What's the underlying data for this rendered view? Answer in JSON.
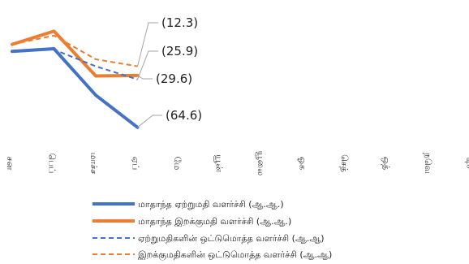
{
  "chart_data": {
    "type": "line",
    "title": "",
    "xlabel": "",
    "ylabel": "",
    "categories": [
      "சன",
      "பெப்",
      "மாச்ச",
      "ஏப்",
      "மே",
      "யூன்",
      "யூலை",
      "ஓக",
      "செத்",
      "ஒத்",
      "நவெ",
      "டிச"
    ],
    "series": [
      {
        "name": "மாதாந்த ஏற்றுமதி வளர்ச்சி (ஆ.ஆ.)",
        "color": "#4472C4",
        "dash": false,
        "values": [
          22,
          25,
          -28,
          -64.6,
          null,
          null,
          null,
          null,
          null,
          null,
          null,
          null
        ]
      },
      {
        "name": "மாதாந்த இறக்குமதி வளர்ச்சி (ஆ.ஆ.)",
        "color": "#ED7D31",
        "dash": false,
        "values": [
          30,
          45,
          -6,
          -5.5,
          null,
          null,
          null,
          null,
          null,
          null,
          null,
          null
        ]
      },
      {
        "name": "ஏற்றுமதிகளின் ஒட்டுமொத்த வளர்ச்சி (ஆ.ஆ)",
        "color": "#4472C4",
        "dash": true,
        "values": [
          22,
          24,
          5,
          -10,
          null,
          null,
          null,
          null,
          null,
          null,
          null,
          null
        ]
      },
      {
        "name": "இறக்குமதிகளின் ஒட்டுமொத்த வளர்ச்சி (ஆ.ஆ)",
        "color": "#ED7D31",
        "dash": true,
        "values": [
          30,
          40,
          13,
          5,
          null,
          null,
          null,
          null,
          null,
          null,
          null,
          null
        ]
      }
    ],
    "data_labels": [
      "(12.3)",
      "(25.9)",
      "(29.6)",
      "(64.6)"
    ],
    "legend_position": "bottom",
    "grid": false
  }
}
